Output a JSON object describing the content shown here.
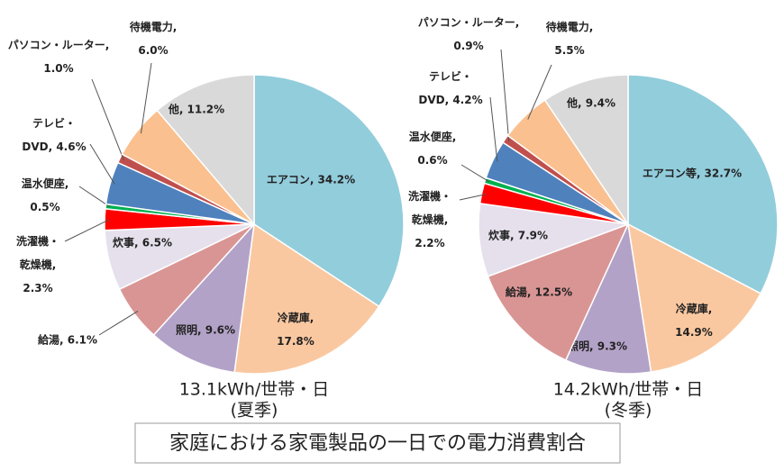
{
  "title": "家庭における家電製品の一日での電力消費割合",
  "chart_data": [
    {
      "type": "pie",
      "subtitle": "13.1kWh/世帯・日",
      "caption": "(夏季)",
      "categories": [
        "エアコン, 34.2%",
        "冷蔵庫,\n17.8%",
        "照明, 9.6%",
        "給湯, 6.1%",
        "炊事, 6.5%",
        "洗濯機・\n乾燥機,\n2.3%",
        "温水便座,\n0.5%",
        "テレビ・\nDVD, 4.6%",
        "パソコン・ルーター,\n1.0%",
        "待機電力,\n6.0%",
        "他, 11.2%"
      ],
      "values": [
        34.2,
        17.8,
        9.6,
        6.1,
        6.5,
        2.3,
        0.5,
        4.6,
        1.0,
        6.0,
        11.2
      ],
      "colors": [
        "#92cddc",
        "#fac8a0",
        "#b3a2c7",
        "#d99594",
        "#e6e0ec",
        "#ff0000",
        "#00b050",
        "#4f81bd",
        "#c0504d",
        "#fac08f",
        "#d9d9d9"
      ]
    },
    {
      "type": "pie",
      "subtitle": "14.2kWh/世帯・日",
      "caption": "(冬季)",
      "categories": [
        "エアコン等, 32.7%",
        "冷蔵庫,\n14.9%",
        "照明, 9.3%",
        "給湯, 12.5%",
        "炊事, 7.9%",
        "洗濯機・\n乾燥機,\n2.2%",
        "温水便座,\n0.6%",
        "テレビ・\nDVD, 4.2%",
        "パソコン・ルーター,\n0.9%",
        "待機電力,\n5.5%",
        "他, 9.4%"
      ],
      "values": [
        32.7,
        14.9,
        9.3,
        12.5,
        7.9,
        2.2,
        0.6,
        4.2,
        0.9,
        5.5,
        9.4
      ],
      "colors": [
        "#92cddc",
        "#fac8a0",
        "#b3a2c7",
        "#d99594",
        "#e6e0ec",
        "#ff0000",
        "#00b050",
        "#4f81bd",
        "#c0504d",
        "#fac08f",
        "#d9d9d9"
      ]
    }
  ]
}
